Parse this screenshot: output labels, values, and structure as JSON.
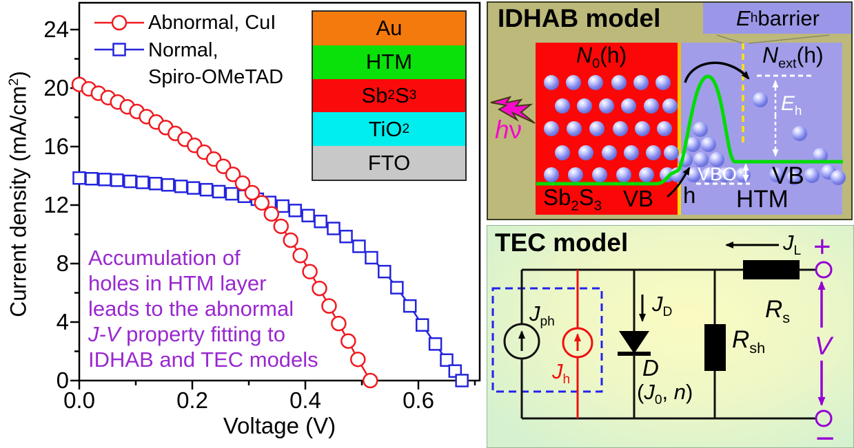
{
  "chart_data": {
    "type": "line",
    "title": "",
    "xlabel": "Voltage (V)",
    "ylabel_parts": {
      "pre": "Current density (mA/cm",
      "sup": "2",
      "post": ")"
    },
    "xlim": [
      0,
      0.708
    ],
    "ylim": [
      0,
      25.8
    ],
    "x_ticks": [
      {
        "v": 0.0,
        "label": "0.0"
      },
      {
        "v": 0.2,
        "label": "0.2"
      },
      {
        "v": 0.4,
        "label": "0.4"
      },
      {
        "v": 0.6,
        "label": "0.6"
      }
    ],
    "x_minor": [
      0.1,
      0.3,
      0.5,
      0.7
    ],
    "y_ticks": [
      {
        "v": 0,
        "label": "0"
      },
      {
        "v": 4,
        "label": "4"
      },
      {
        "v": 8,
        "label": "8"
      },
      {
        "v": 12,
        "label": "12"
      },
      {
        "v": 16,
        "label": "16"
      },
      {
        "v": 20,
        "label": "20"
      },
      {
        "v": 24,
        "label": "24"
      }
    ],
    "y_minor": [
      2,
      6,
      10,
      14,
      18,
      22
    ],
    "legend": [
      {
        "label": "Abnormal, CuI",
        "marker": "circle",
        "color": "#f01a20"
      },
      {
        "label": "Normal,",
        "label2": "Spiro-OMeTAD",
        "marker": "square",
        "color": "#2424dd"
      }
    ],
    "series": [
      {
        "name": "Abnormal, CuI",
        "marker": "circle",
        "color": "#f01a20",
        "points": [
          [
            0.0,
            20.25
          ],
          [
            0.017,
            19.95
          ],
          [
            0.034,
            19.65
          ],
          [
            0.051,
            19.35
          ],
          [
            0.068,
            19.05
          ],
          [
            0.085,
            18.72
          ],
          [
            0.102,
            18.4
          ],
          [
            0.119,
            18.05
          ],
          [
            0.136,
            17.68
          ],
          [
            0.153,
            17.3
          ],
          [
            0.17,
            16.9
          ],
          [
            0.187,
            16.5
          ],
          [
            0.204,
            16.08
          ],
          [
            0.221,
            15.62
          ],
          [
            0.238,
            15.15
          ],
          [
            0.255,
            14.65
          ],
          [
            0.272,
            14.1
          ],
          [
            0.289,
            13.5
          ],
          [
            0.306,
            12.85
          ],
          [
            0.323,
            12.15
          ],
          [
            0.34,
            11.4
          ],
          [
            0.357,
            10.55
          ],
          [
            0.374,
            9.6
          ],
          [
            0.391,
            8.55
          ],
          [
            0.408,
            7.45
          ],
          [
            0.425,
            6.3
          ],
          [
            0.442,
            5.1
          ],
          [
            0.459,
            3.9
          ],
          [
            0.476,
            2.7
          ],
          [
            0.493,
            1.45
          ],
          [
            0.515,
            0.0
          ]
        ]
      },
      {
        "name": "Normal, Spiro-OMeTAD",
        "marker": "square",
        "color": "#2424dd",
        "points": [
          [
            0.0,
            13.85
          ],
          [
            0.022,
            13.8
          ],
          [
            0.045,
            13.75
          ],
          [
            0.067,
            13.7
          ],
          [
            0.09,
            13.62
          ],
          [
            0.112,
            13.55
          ],
          [
            0.135,
            13.47
          ],
          [
            0.157,
            13.38
          ],
          [
            0.18,
            13.28
          ],
          [
            0.202,
            13.17
          ],
          [
            0.225,
            13.05
          ],
          [
            0.247,
            12.92
          ],
          [
            0.27,
            12.77
          ],
          [
            0.292,
            12.6
          ],
          [
            0.315,
            12.4
          ],
          [
            0.337,
            12.18
          ],
          [
            0.36,
            11.93
          ],
          [
            0.382,
            11.63
          ],
          [
            0.405,
            11.28
          ],
          [
            0.427,
            10.88
          ],
          [
            0.45,
            10.4
          ],
          [
            0.472,
            9.85
          ],
          [
            0.495,
            9.18
          ],
          [
            0.517,
            8.4
          ],
          [
            0.54,
            7.45
          ],
          [
            0.562,
            6.35
          ],
          [
            0.585,
            5.1
          ],
          [
            0.607,
            3.8
          ],
          [
            0.63,
            2.5
          ],
          [
            0.65,
            1.4
          ],
          [
            0.665,
            0.65
          ],
          [
            0.677,
            0.0
          ]
        ]
      }
    ]
  },
  "chart": {
    "note": {
      "l1": "Accumulation of",
      "l2": "holes in HTM layer",
      "l3": "leads to the abnormal",
      "l4i": "J-V",
      "l4t": " property fitting to",
      "l5": "IDHAB and TEC models",
      "color": "#9928cf"
    },
    "inset_layers": [
      {
        "name": "au",
        "t1": "Au",
        "color": "#f57a0d"
      },
      {
        "name": "htm",
        "t1": "HTM",
        "color": "#0ae00a"
      },
      {
        "name": "sb2s3",
        "t1": "Sb",
        "s1": "2",
        "t2": "S",
        "s2": "3",
        "color": "#fa0a0a"
      },
      {
        "name": "tio2",
        "t1": "TiO",
        "s1": "2",
        "color": "#00eeee"
      },
      {
        "name": "fto",
        "t1": "FTO",
        "color": "#c8c8c8"
      }
    ]
  },
  "idhab": {
    "title": "IDHAB model",
    "eh_barrier": {
      "pre": "E",
      "sub": "h",
      "post": " barrier"
    },
    "n0": {
      "pre": "N",
      "sub": "0",
      "post": "(h)"
    },
    "next": {
      "pre": "N",
      "sub": "ext",
      "post": "(h)"
    },
    "eh": {
      "pre": "E",
      "sub": "h"
    },
    "vbo": "VBO",
    "vb_left": "VB",
    "vb_right": "VB",
    "htm": "HTM",
    "sb2s3": {
      "p1": "Sb",
      "s1": "2",
      "p2": "S",
      "s2": "3"
    },
    "h": "h",
    "hnu": {
      "h": "h",
      "nu": "ν"
    },
    "colors": {
      "panel": "#bdb97b",
      "absorber": "#fb0707",
      "htm": "#a19de9",
      "barrier_box": "#9b97e8",
      "band": "#00dc00",
      "interface": "#ffc400",
      "magenta": "#f20ac8"
    },
    "spheres": [
      [
        94,
        118
      ],
      [
        126,
        118
      ],
      [
        158,
        118
      ],
      [
        192,
        118
      ],
      [
        224,
        118
      ],
      [
        256,
        118
      ],
      [
        110,
        152
      ],
      [
        142,
        152
      ],
      [
        174,
        152
      ],
      [
        206,
        152
      ],
      [
        239,
        152
      ],
      [
        266,
        152
      ],
      [
        94,
        185
      ],
      [
        127,
        185
      ],
      [
        160,
        185
      ],
      [
        194,
        185
      ],
      [
        226,
        185
      ],
      [
        258,
        185
      ],
      [
        110,
        220
      ],
      [
        144,
        220
      ],
      [
        178,
        220
      ],
      [
        210,
        220
      ],
      [
        242,
        220
      ],
      [
        268,
        220
      ],
      [
        94,
        252
      ],
      [
        129,
        252
      ],
      [
        164,
        252
      ],
      [
        199,
        252
      ],
      [
        232,
        252
      ],
      [
        262,
        252
      ],
      [
        277,
        252
      ],
      [
        300,
        252
      ],
      [
        323,
        252
      ],
      [
        346,
        252
      ],
      [
        288,
        230
      ],
      [
        311,
        230
      ],
      [
        334,
        230
      ],
      [
        299,
        208
      ],
      [
        322,
        208
      ],
      [
        310,
        186
      ],
      [
        372,
        252
      ],
      [
        397,
        143
      ],
      [
        454,
        192
      ],
      [
        421,
        252
      ],
      [
        446,
        256
      ],
      [
        472,
        253
      ],
      [
        496,
        248
      ],
      [
        510,
        256
      ],
      [
        484,
        224
      ]
    ]
  },
  "tec": {
    "title": "TEC model",
    "jph": {
      "pre": "J",
      "sub": "ph"
    },
    "jh": {
      "pre": "J",
      "sub": "h"
    },
    "jd": {
      "pre": "J",
      "sub": "D"
    },
    "jl": {
      "pre": "J",
      "sub": "L"
    },
    "d": "D",
    "j0n": {
      "p1": "(",
      "j": "J",
      "s": "0",
      "p2": ", ",
      "n": "n",
      "p3": ")"
    },
    "rs": {
      "pre": "R",
      "sub": "s"
    },
    "rsh": {
      "pre": "R",
      "sub": "sh"
    },
    "v": "V",
    "plus": "+",
    "minus": "−",
    "colors": {
      "wire": "#111111",
      "hole_source": "#ee1111",
      "dashed_box": "#2222ee",
      "terminal": "#9400d3"
    }
  }
}
